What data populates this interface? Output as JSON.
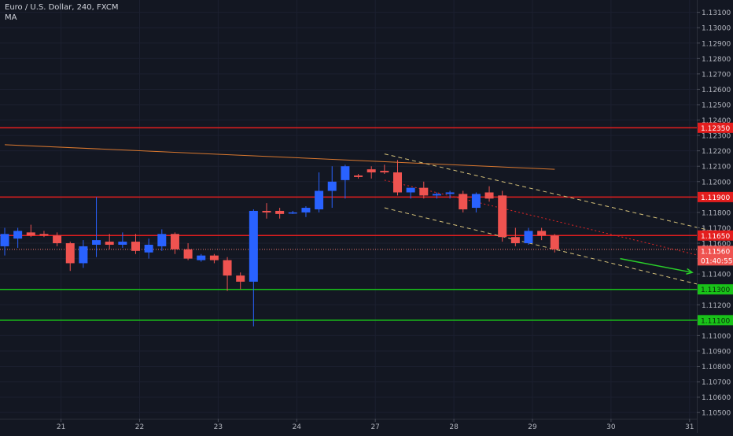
{
  "header": {
    "title": "Euro / U.S. Dollar, 240, FXCM",
    "indicator": "MA"
  },
  "colors": {
    "background": "#131722",
    "bull": "#2962ff",
    "bear": "#ef5350",
    "resistance": "#e41e1e",
    "support": "#19c219",
    "ma": "#d9782f",
    "channel": "#d6c27a",
    "midline": "#e02525",
    "arrow": "#2ad02a",
    "axis_text": "#b2b5be",
    "price_line": "#f07a70"
  },
  "chart_data": {
    "type": "candlestick",
    "symbol": "EURUSD",
    "timeframe": "240",
    "source": "FXCM",
    "x_ticks": [
      "21",
      "22",
      "23",
      "24",
      "27",
      "28",
      "29",
      "30",
      "31"
    ],
    "y_ticks": [
      "1.10500",
      "1.10600",
      "1.10700",
      "1.10800",
      "1.10900",
      "1.11000",
      "1.11100",
      "1.11200",
      "1.11300",
      "1.11400",
      "1.11500",
      "1.11600",
      "1.11700",
      "1.11800",
      "1.11900",
      "1.12000",
      "1.12100",
      "1.12200",
      "1.12300",
      "1.12400",
      "1.12500",
      "1.12600",
      "1.12700",
      "1.12800",
      "1.12900",
      "1.13000",
      "1.13100"
    ],
    "ylim": [
      1.1046,
      1.1318
    ],
    "candles": [
      {
        "t": 0,
        "o": 1.1158,
        "h": 1.117,
        "l": 1.1152,
        "c": 1.1166
      },
      {
        "t": 1,
        "o": 1.1163,
        "h": 1.117,
        "l": 1.1157,
        "c": 1.1168
      },
      {
        "t": 2,
        "o": 1.1167,
        "h": 1.1172,
        "l": 1.1164,
        "c": 1.1165
      },
      {
        "t": 3,
        "o": 1.1166,
        "h": 1.1168,
        "l": 1.1164,
        "c": 1.1165
      },
      {
        "t": 4,
        "o": 1.1165,
        "h": 1.1167,
        "l": 1.1158,
        "c": 1.116
      },
      {
        "t": 5,
        "o": 1.116,
        "h": 1.1161,
        "l": 1.1142,
        "c": 1.1147
      },
      {
        "t": 6,
        "o": 1.1147,
        "h": 1.1162,
        "l": 1.1144,
        "c": 1.1158
      },
      {
        "t": 7,
        "o": 1.1159,
        "h": 1.119,
        "l": 1.1151,
        "c": 1.1162
      },
      {
        "t": 8,
        "o": 1.1161,
        "h": 1.1166,
        "l": 1.1156,
        "c": 1.1159
      },
      {
        "t": 9,
        "o": 1.1159,
        "h": 1.1167,
        "l": 1.1157,
        "c": 1.1161
      },
      {
        "t": 10,
        "o": 1.1161,
        "h": 1.1166,
        "l": 1.1153,
        "c": 1.1155
      },
      {
        "t": 11,
        "o": 1.1154,
        "h": 1.1163,
        "l": 1.115,
        "c": 1.1159
      },
      {
        "t": 12,
        "o": 1.1158,
        "h": 1.1169,
        "l": 1.1155,
        "c": 1.1166
      },
      {
        "t": 13,
        "o": 1.1166,
        "h": 1.1167,
        "l": 1.1153,
        "c": 1.1156
      },
      {
        "t": 14,
        "o": 1.1156,
        "h": 1.116,
        "l": 1.1149,
        "c": 1.115
      },
      {
        "t": 15,
        "o": 1.1149,
        "h": 1.1153,
        "l": 1.1148,
        "c": 1.1152
      },
      {
        "t": 16,
        "o": 1.1152,
        "h": 1.1153,
        "l": 1.1147,
        "c": 1.1149
      },
      {
        "t": 17,
        "o": 1.1149,
        "h": 1.1151,
        "l": 1.1129,
        "c": 1.1139
      },
      {
        "t": 18,
        "o": 1.1139,
        "h": 1.1141,
        "l": 1.113,
        "c": 1.1135
      },
      {
        "t": 19,
        "o": 1.1135,
        "h": 1.1182,
        "l": 1.1106,
        "c": 1.1181
      },
      {
        "t": 20,
        "o": 1.1181,
        "h": 1.1186,
        "l": 1.1176,
        "c": 1.118
      },
      {
        "t": 21,
        "o": 1.1181,
        "h": 1.1183,
        "l": 1.1176,
        "c": 1.1179
      },
      {
        "t": 22,
        "o": 1.118,
        "h": 1.1181,
        "l": 1.1179,
        "c": 1.118
      },
      {
        "t": 23,
        "o": 1.118,
        "h": 1.1184,
        "l": 1.1177,
        "c": 1.1183
      },
      {
        "t": 24,
        "o": 1.1182,
        "h": 1.1206,
        "l": 1.118,
        "c": 1.1194
      },
      {
        "t": 25,
        "o": 1.1194,
        "h": 1.121,
        "l": 1.1183,
        "c": 1.12
      },
      {
        "t": 26,
        "o": 1.1201,
        "h": 1.1211,
        "l": 1.1189,
        "c": 1.121
      },
      {
        "t": 27,
        "o": 1.1204,
        "h": 1.1205,
        "l": 1.1202,
        "c": 1.1203
      },
      {
        "t": 28,
        "o": 1.1208,
        "h": 1.121,
        "l": 1.1202,
        "c": 1.1206
      },
      {
        "t": 29,
        "o": 1.1207,
        "h": 1.1211,
        "l": 1.1205,
        "c": 1.1206
      },
      {
        "t": 30,
        "o": 1.1206,
        "h": 1.1214,
        "l": 1.1191,
        "c": 1.1193
      },
      {
        "t": 31,
        "o": 1.1193,
        "h": 1.1196,
        "l": 1.1189,
        "c": 1.1196
      },
      {
        "t": 32,
        "o": 1.1196,
        "h": 1.12,
        "l": 1.1189,
        "c": 1.1191
      },
      {
        "t": 33,
        "o": 1.1191,
        "h": 1.1193,
        "l": 1.1189,
        "c": 1.1192
      },
      {
        "t": 34,
        "o": 1.1192,
        "h": 1.1194,
        "l": 1.1189,
        "c": 1.1193
      },
      {
        "t": 35,
        "o": 1.1192,
        "h": 1.1194,
        "l": 1.118,
        "c": 1.1182
      },
      {
        "t": 36,
        "o": 1.1183,
        "h": 1.1193,
        "l": 1.118,
        "c": 1.1192
      },
      {
        "t": 37,
        "o": 1.1193,
        "h": 1.1197,
        "l": 1.1187,
        "c": 1.1189
      },
      {
        "t": 38,
        "o": 1.1191,
        "h": 1.1194,
        "l": 1.1161,
        "c": 1.1164
      },
      {
        "t": 39,
        "o": 1.1164,
        "h": 1.117,
        "l": 1.1158,
        "c": 1.116
      },
      {
        "t": 40,
        "o": 1.116,
        "h": 1.117,
        "l": 1.1159,
        "c": 1.1168
      },
      {
        "t": 41,
        "o": 1.1168,
        "h": 1.117,
        "l": 1.1162,
        "c": 1.1165
      },
      {
        "t": 42,
        "o": 1.1165,
        "h": 1.1166,
        "l": 1.1154,
        "c": 1.1156
      }
    ],
    "moving_average": {
      "name": "MA",
      "start": {
        "t": 0,
        "value": 1.1224
      },
      "end": {
        "t": 42,
        "value": 1.1208
      }
    },
    "horizontal_levels": [
      {
        "price": 1.1235,
        "label": "1.12350",
        "kind": "resistance"
      },
      {
        "price": 1.119,
        "label": "1.11900",
        "kind": "resistance"
      },
      {
        "price": 1.1165,
        "label": "1.11650",
        "kind": "resistance"
      },
      {
        "price": 1.113,
        "label": "1.11300",
        "kind": "support"
      },
      {
        "price": 1.111,
        "label": "1.11100",
        "kind": "support"
      }
    ],
    "last_price": {
      "price": 1.1156,
      "label": "1.11560",
      "countdown": "01:40:55"
    },
    "channel": {
      "upper": [
        {
          "t": 29,
          "p": 1.1218
        },
        {
          "t": 55.5,
          "p": 1.1165
        }
      ],
      "lower": [
        {
          "t": 29,
          "p": 1.1183
        },
        {
          "t": 55.5,
          "p": 1.1128
        }
      ],
      "mid": [
        {
          "t": 29,
          "p": 1.1201
        },
        {
          "t": 55.5,
          "p": 1.1147
        }
      ]
    },
    "projection_arrow": {
      "from": {
        "t": 47,
        "p": 1.115
      },
      "to": {
        "t": 52.5,
        "p": 1.1141
      }
    }
  }
}
